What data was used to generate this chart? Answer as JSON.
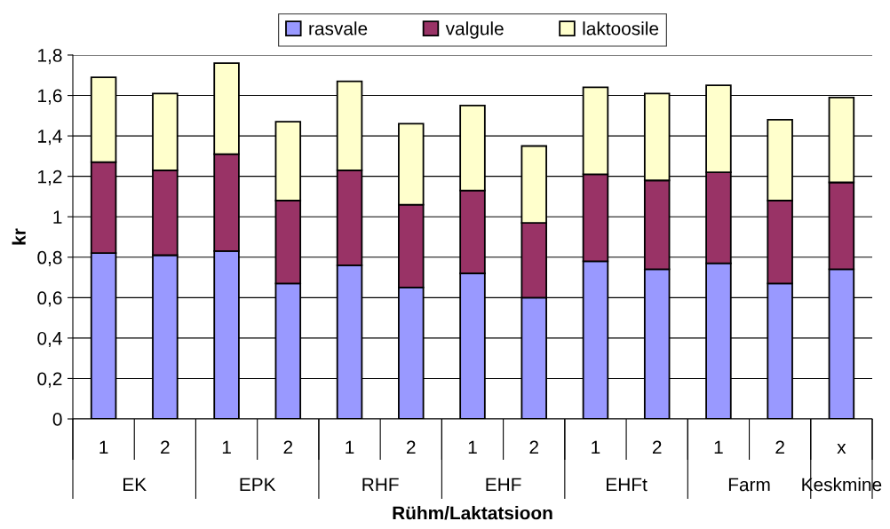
{
  "chart_data": {
    "type": "bar",
    "stacked": true,
    "xlabel": "Rühm/Laktatsioon",
    "ylabel": "kr",
    "categories": [
      "1",
      "2",
      "1",
      "2",
      "1",
      "2",
      "1",
      "2",
      "1",
      "2",
      "1",
      "2",
      "x"
    ],
    "annotations": [
      "EK",
      "EPK",
      "RHF",
      "EHF",
      "EHFt",
      "Farm",
      "Keskmine"
    ],
    "series": [
      {
        "name": "rasvale",
        "color": "#9999ff",
        "values": [
          0.82,
          0.81,
          0.83,
          0.67,
          0.76,
          0.65,
          0.72,
          0.6,
          0.78,
          0.74,
          0.77,
          0.67,
          0.74
        ]
      },
      {
        "name": "valgule",
        "color": "#993366",
        "values": [
          0.45,
          0.42,
          0.48,
          0.41,
          0.47,
          0.41,
          0.41,
          0.37,
          0.43,
          0.44,
          0.45,
          0.41,
          0.43
        ]
      },
      {
        "name": "laktoosile",
        "color": "#ffffcc",
        "values": [
          0.42,
          0.38,
          0.45,
          0.39,
          0.44,
          0.4,
          0.42,
          0.38,
          0.43,
          0.43,
          0.43,
          0.4,
          0.42
        ]
      }
    ],
    "ylim": [
      0,
      1.8
    ],
    "yticks": [
      0,
      {
        "value": 0.2,
        "label": "0,2"
      },
      {
        "value": 0.4,
        "label": "0,4"
      },
      {
        "value": 0.6,
        "label": "0,6"
      },
      {
        "value": 0.8,
        "label": "0,8"
      },
      1,
      {
        "value": 1.2,
        "label": "1,2"
      },
      {
        "value": 1.4,
        "label": "1,4"
      },
      {
        "value": 1.6,
        "label": "1,6"
      },
      {
        "value": 1.8,
        "label": "1,8"
      }
    ],
    "grid": "y",
    "legend": "top"
  }
}
